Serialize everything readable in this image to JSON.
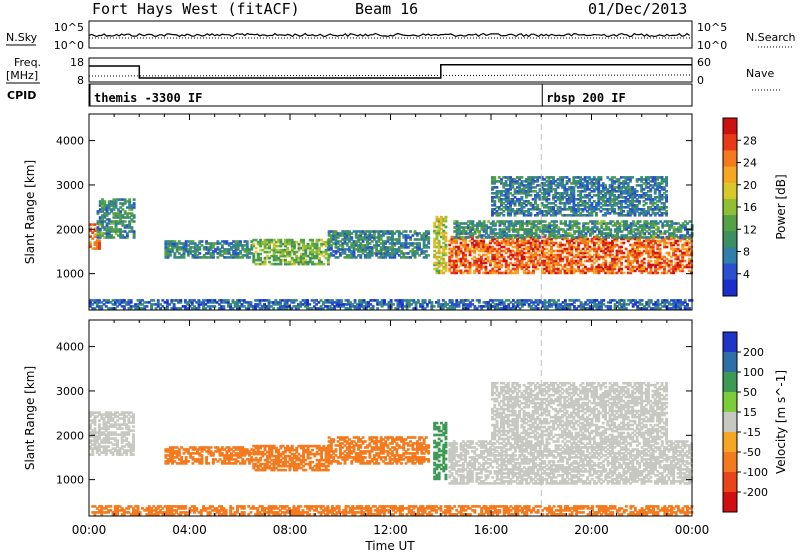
{
  "header": {
    "station": "Fort Hays West (fitACF)",
    "beam": "Beam 16",
    "date": "01/Dec/2013"
  },
  "noise_panel": {
    "left_label": "N.Sky",
    "right_label": "N.Search",
    "left_ticks": [
      "10^5",
      "10^0"
    ],
    "right_ticks": [
      "10^5",
      "10^0"
    ]
  },
  "freq_panel": {
    "left_label_1": "Freq.",
    "left_label_2": "[MHz]",
    "right_label": "Nave",
    "left_ticks": [
      "18",
      "8"
    ],
    "right_ticks": [
      "60",
      "0"
    ],
    "freq_steps": [
      {
        "start_h": 0,
        "end_h": 2,
        "mhz": 15.5
      },
      {
        "start_h": 2,
        "end_h": 14,
        "mhz": 10.5
      },
      {
        "start_h": 14,
        "end_h": 24,
        "mhz": 16.0
      }
    ],
    "nave_level": 18
  },
  "cpid_panel": {
    "label": "CPID",
    "programs": [
      {
        "name": "themis -3300 IF",
        "start_h": 0
      },
      {
        "name": "rbsp 200 IF",
        "start_h": 18
      }
    ]
  },
  "x_axis": {
    "label": "Time UT",
    "ticks": [
      "00:00",
      "04:00",
      "08:00",
      "12:00",
      "16:00",
      "20:00",
      "00:00"
    ]
  },
  "chart_data": [
    {
      "type": "heatmap",
      "parameter": "power",
      "ylabel": "Slant Range [km]",
      "y_ticks": [
        1000,
        2000,
        3000,
        4000
      ],
      "ylim": [
        180,
        4600
      ],
      "xlim_hours": [
        0,
        24
      ],
      "colorbar": {
        "label": "Power [dB]",
        "ticks": [
          "28",
          "24",
          "20",
          "16",
          "12",
          "8",
          "4"
        ],
        "range": [
          0,
          32
        ],
        "colors": [
          "#1a2ecc",
          "#2a4fd0",
          "#2f7fa8",
          "#3c8f62",
          "#55a145",
          "#8fbf35",
          "#d8c82a",
          "#f5a623",
          "#f57a1e",
          "#e83a17",
          "#cc1111"
        ]
      },
      "regions": [
        {
          "t": [
            0.0,
            0.4
          ],
          "r": [
            1550,
            2100
          ],
          "value": 24
        },
        {
          "t": [
            0.3,
            1.8
          ],
          "r": [
            1800,
            2700
          ],
          "value": 10
        },
        {
          "t": [
            3.0,
            6.5
          ],
          "r": [
            1350,
            1750
          ],
          "value": 9
        },
        {
          "t": [
            6.5,
            9.5
          ],
          "r": [
            1200,
            1750
          ],
          "value": 14
        },
        {
          "t": [
            9.5,
            13.5
          ],
          "r": [
            1350,
            1950
          ],
          "value": 9
        },
        {
          "t": [
            13.7,
            14.2
          ],
          "r": [
            1000,
            2300
          ],
          "value": 18
        },
        {
          "t": [
            14.3,
            24.0
          ],
          "r": [
            1000,
            1850
          ],
          "value": 26
        },
        {
          "t": [
            14.5,
            24.0
          ],
          "r": [
            1800,
            2200
          ],
          "value": 10
        },
        {
          "t": [
            16.0,
            23.0
          ],
          "r": [
            2300,
            3200
          ],
          "value": 8
        },
        {
          "t": [
            0.0,
            24.0
          ],
          "r": [
            200,
            420
          ],
          "value": 6
        }
      ]
    },
    {
      "type": "heatmap",
      "parameter": "velocity",
      "ylabel": "Slant Range [km]",
      "y_ticks": [
        1000,
        2000,
        3000,
        4000
      ],
      "ylim": [
        180,
        4600
      ],
      "xlim_hours": [
        0,
        24
      ],
      "colorbar": {
        "label": "Velocity [m s^-1]",
        "ticks": [
          "200",
          "100",
          "50",
          "15",
          "-15",
          "-50",
          "-100",
          "-200"
        ],
        "colors": [
          "#1f35c8",
          "#2f6fa8",
          "#3d9a55",
          "#7ccd3c",
          "#c8c8c2",
          "#f5a623",
          "#f57a1e",
          "#e8451a",
          "#d01010"
        ]
      },
      "regions": [
        {
          "t": [
            0.0,
            1.8
          ],
          "r": [
            1550,
            2500
          ],
          "value": 0
        },
        {
          "t": [
            3.0,
            6.5
          ],
          "r": [
            1350,
            1750
          ],
          "value": -70
        },
        {
          "t": [
            6.5,
            9.5
          ],
          "r": [
            1200,
            1750
          ],
          "value": -40
        },
        {
          "t": [
            9.5,
            13.5
          ],
          "r": [
            1350,
            1950
          ],
          "value": -40
        },
        {
          "t": [
            13.7,
            14.2
          ],
          "r": [
            1000,
            2300
          ],
          "value": 40
        },
        {
          "t": [
            14.3,
            24.0
          ],
          "r": [
            900,
            1850
          ],
          "value": 0
        },
        {
          "t": [
            16.0,
            23.0
          ],
          "r": [
            1900,
            3200
          ],
          "value": 0
        },
        {
          "t": [
            0.0,
            24.0
          ],
          "r": [
            200,
            420
          ],
          "value": -40
        }
      ]
    }
  ]
}
